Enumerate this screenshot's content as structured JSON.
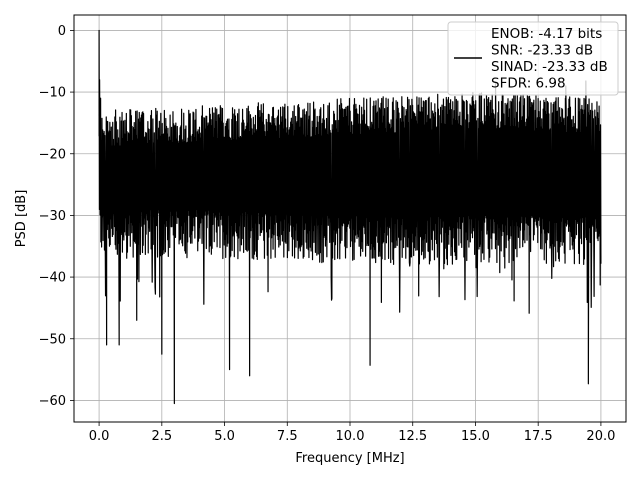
{
  "chart_data": {
    "type": "line",
    "title": "",
    "xlabel": "Frequency [MHz]",
    "ylabel": "PSD [dB]",
    "xlim": [
      -1.0,
      21.0
    ],
    "ylim": [
      -63.5,
      2.5
    ],
    "xticks": [
      0.0,
      2.5,
      5.0,
      7.5,
      10.0,
      12.5,
      15.0,
      17.5,
      20.0
    ],
    "xtick_labels": [
      "0.0",
      "2.5",
      "5.0",
      "7.5",
      "10.0",
      "12.5",
      "15.0",
      "17.5",
      "20.0"
    ],
    "yticks": [
      0,
      -10,
      -20,
      -30,
      -40,
      -50,
      -60
    ],
    "ytick_labels": [
      "0",
      "−10",
      "−20",
      "−30",
      "−40",
      "−50",
      "−60"
    ],
    "grid": true,
    "legend_position": "top-right",
    "series": [
      {
        "name": "ENOB: -4.17 bits\nSNR: -23.33 dB\nSINAD: -23.33 dB\nSFDR: 6.98",
        "color": "#000000",
        "noise_floor_upper_db": [
          [
            0.0,
            -16
          ],
          [
            5.0,
            -15
          ],
          [
            10.0,
            -14
          ],
          [
            15.0,
            -13
          ],
          [
            20.0,
            -14
          ]
        ],
        "noise_floor_lower_db": [
          [
            0.0,
            -33
          ],
          [
            5.0,
            -33
          ],
          [
            10.0,
            -34
          ],
          [
            15.0,
            -34
          ],
          [
            20.0,
            -34
          ]
        ],
        "peaks": [
          [
            0.0,
            0.0
          ],
          [
            0.02,
            -8.0
          ],
          [
            0.06,
            -11.0
          ],
          [
            15.8,
            -8.5
          ],
          [
            18.6,
            -9.0
          ],
          [
            19.4,
            -8.2
          ]
        ],
        "dips": [
          [
            0.3,
            -51.0
          ],
          [
            0.8,
            -51.0
          ],
          [
            1.5,
            -47.0
          ],
          [
            2.5,
            -52.5
          ],
          [
            3.0,
            -60.5
          ],
          [
            5.2,
            -55.0
          ],
          [
            6.0,
            -56.0
          ],
          [
            10.8,
            -54.3
          ],
          [
            19.5,
            -57.3
          ]
        ]
      }
    ]
  }
}
